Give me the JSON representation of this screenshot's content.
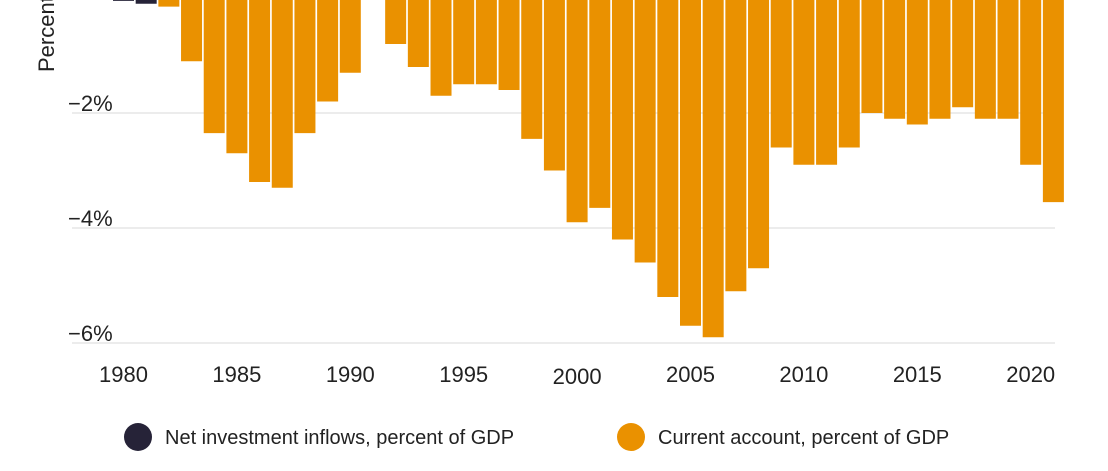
{
  "chart_data": {
    "type": "bar",
    "ylabel": "Percent",
    "ylim": [
      -6,
      0
    ],
    "y_ticks": [
      {
        "value": -2,
        "label": "−2%"
      },
      {
        "value": -4,
        "label": "−4%"
      },
      {
        "value": -6,
        "label": "−6%"
      }
    ],
    "x_ticks": [
      {
        "year": 1980,
        "label": "1980"
      },
      {
        "year": 1985,
        "label": "1985"
      },
      {
        "year": 1990,
        "label": "1990"
      },
      {
        "year": 1995,
        "label": "1995"
      },
      {
        "year": 2000,
        "label": "2000"
      },
      {
        "year": 2005,
        "label": "2005"
      },
      {
        "year": 2010,
        "label": "2010"
      },
      {
        "year": 2015,
        "label": "2015"
      },
      {
        "year": 2020,
        "label": "2020"
      }
    ],
    "categories": [
      1980,
      1981,
      1982,
      1983,
      1984,
      1985,
      1986,
      1987,
      1988,
      1989,
      1990,
      1991,
      1992,
      1993,
      1994,
      1995,
      1996,
      1997,
      1998,
      1999,
      2000,
      2001,
      2002,
      2003,
      2004,
      2005,
      2006,
      2007,
      2008,
      2009,
      2010,
      2011,
      2012,
      2013,
      2014,
      2015,
      2016,
      2017,
      2018,
      2019,
      2020,
      2021
    ],
    "series": [
      {
        "name": "Net investment inflows, percent of GDP",
        "color": "#262338",
        "values": [
          -0.05,
          -0.1,
          0,
          0,
          0,
          0,
          0,
          0,
          0,
          0,
          0,
          0,
          0,
          0,
          0,
          0,
          0,
          0,
          0,
          0,
          0,
          0,
          0,
          0,
          0,
          0,
          0,
          0,
          0,
          0,
          0,
          0,
          0,
          0,
          0,
          0,
          0,
          0,
          0,
          0,
          0,
          0
        ]
      },
      {
        "name": "Current account, percent of GDP",
        "color": "#EA9100",
        "values": [
          0,
          0,
          -0.15,
          -1.1,
          -2.35,
          -2.7,
          -3.2,
          -3.3,
          -2.35,
          -1.8,
          -1.3,
          0,
          -0.8,
          -1.2,
          -1.7,
          -1.5,
          -1.5,
          -1.6,
          -2.45,
          -3.0,
          -3.9,
          -3.65,
          -4.2,
          -4.6,
          -5.2,
          -5.7,
          -5.9,
          -5.1,
          -4.7,
          -2.6,
          -2.9,
          -2.9,
          -2.6,
          -2.0,
          -2.1,
          -2.2,
          -2.1,
          -1.9,
          -2.1,
          -2.1,
          -2.9,
          -3.55
        ]
      }
    ]
  },
  "legend": {
    "items": [
      {
        "label": "Net investment inflows, percent of GDP",
        "color": "#262338"
      },
      {
        "label": "Current account, percent of GDP",
        "color": "#EA9100"
      }
    ]
  }
}
